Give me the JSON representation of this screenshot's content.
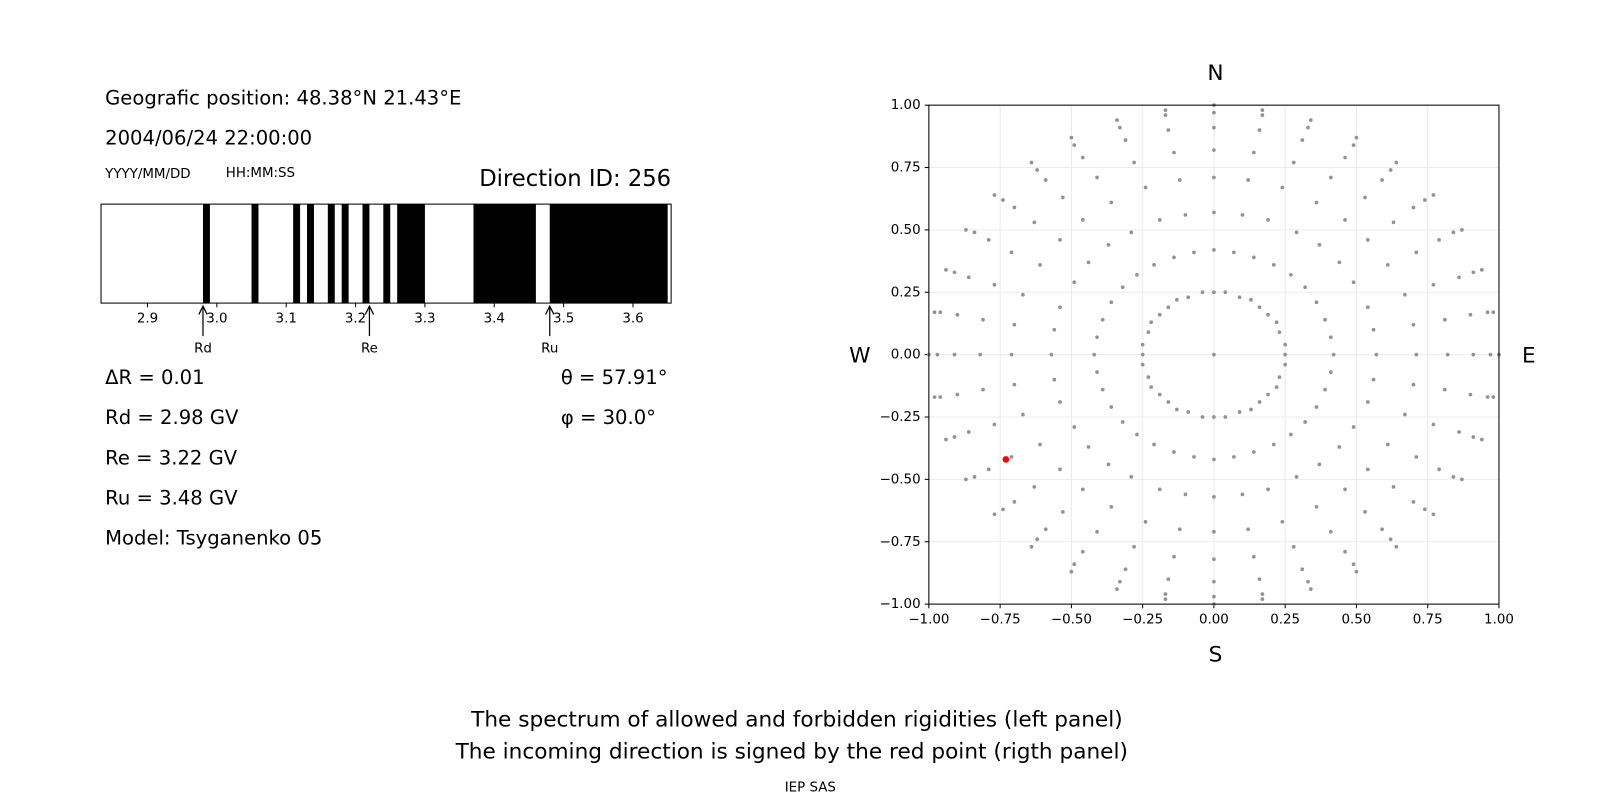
{
  "header": {
    "position": "Geografic position: 48.38°N 21.43°E",
    "datetime": "2004/06/24 22:00:00",
    "date_format": "YYYY/MM/DD",
    "time_format": "HH:MM:SS",
    "direction_id": "Direction ID: 256"
  },
  "results": [
    "ΔR = 0.01",
    "Rd = 2.98 GV",
    "Re = 3.22 GV",
    "Ru = 3.48 GV",
    "Model: Tsyganenko 05"
  ],
  "angles": [
    "θ = 57.91°",
    "φ = 30.0°"
  ],
  "footer": {
    "lines": [
      "The spectrum of allowed and forbidden rigidities (left panel)",
      "The incoming direction is signed by the red point (rigth panel)"
    ],
    "credit": "IEP SAS"
  },
  "chart_data": [
    {
      "type": "spectrum",
      "xlim": [
        2.833,
        3.655
      ],
      "xticks": [
        2.9,
        {
          "value": 3,
          "label": "3.0"
        },
        3.1,
        3.2,
        3.3,
        3.4,
        3.5,
        3.6
      ],
      "band_color": "#000000",
      "bands": [
        [
          2.98,
          2.99
        ],
        [
          3.05,
          3.06
        ],
        [
          3.11,
          3.12
        ],
        [
          3.13,
          3.14
        ],
        [
          3.16,
          3.17
        ],
        [
          3.18,
          3.19
        ],
        [
          3.21,
          3.22
        ],
        [
          3.24,
          3.25
        ],
        [
          3.26,
          3.3
        ],
        [
          3.37,
          3.46
        ],
        [
          3.48,
          3.65
        ]
      ],
      "markers": [
        {
          "value": 2.98,
          "label": "Rd"
        },
        {
          "value": 3.22,
          "label": "Re"
        },
        {
          "value": 3.48,
          "label": "Ru"
        }
      ]
    },
    {
      "type": "scatter",
      "grid": true,
      "compass": {
        "north": "N",
        "south": "S",
        "west": "W",
        "east": "E"
      },
      "xlim": [
        -1,
        1
      ],
      "ylim": [
        -1,
        1
      ],
      "xticks": [
        {
          "value": -1,
          "label": "−1.00"
        },
        {
          "value": -0.75,
          "label": "−0.75"
        },
        {
          "value": -0.5,
          "label": "−0.50"
        },
        {
          "value": -0.25,
          "label": "−0.25"
        },
        {
          "value": 0,
          "label": "0.00"
        },
        {
          "value": 0.25,
          "label": "0.25"
        },
        {
          "value": 0.5,
          "label": "0.50"
        },
        {
          "value": 0.75,
          "label": "0.75"
        },
        {
          "value": 1,
          "label": "1.00"
        }
      ],
      "yticks": [
        {
          "value": -1,
          "label": "−1.00"
        },
        {
          "value": -0.75,
          "label": "−0.75"
        },
        {
          "value": -0.5,
          "label": "−0.50"
        },
        {
          "value": -0.25,
          "label": "−0.25"
        },
        {
          "value": 0,
          "label": "0.00"
        },
        {
          "value": 0.25,
          "label": "0.25"
        },
        {
          "value": 0.5,
          "label": "0.50"
        },
        {
          "value": 0.75,
          "label": "0.75"
        },
        {
          "value": 1,
          "label": "1.00"
        }
      ],
      "point_color": "#929292",
      "series": [
        {
          "x": [
            0
          ],
          "values": [
            0
          ]
        },
        {
          "x": [
            0.25,
            0.25,
            0.23,
            0.22,
            0.19,
            0.16,
            0.13,
            0.09,
            0.04,
            0,
            -0.04,
            -0.09,
            -0.13,
            -0.16,
            -0.19,
            -0.22,
            -0.23,
            -0.25,
            -0.25,
            -0.25,
            -0.23,
            -0.22,
            -0.19,
            -0.16,
            -0.13,
            -0.09,
            -0.04,
            0,
            0.04,
            0.09,
            0.13,
            0.16,
            0.19,
            0.22,
            0.23,
            0.25
          ],
          "values": [
            0,
            0.04,
            0.09,
            0.13,
            0.16,
            0.19,
            0.22,
            0.23,
            0.25,
            0.25,
            0.25,
            0.23,
            0.22,
            0.19,
            0.16,
            0.13,
            0.09,
            0.04,
            0,
            -0.04,
            -0.09,
            -0.13,
            -0.16,
            -0.19,
            -0.22,
            -0.23,
            -0.25,
            -0.25,
            -0.25,
            -0.23,
            -0.22,
            -0.19,
            -0.16,
            -0.13,
            -0.09,
            -0.04
          ]
        },
        {
          "x": [
            0.42,
            0.41,
            0.39,
            0.36,
            0.32,
            0.27,
            0.21,
            0.14,
            0.07,
            0,
            -0.07,
            -0.14,
            -0.21,
            -0.27,
            -0.32,
            -0.36,
            -0.39,
            -0.41,
            -0.42,
            -0.41,
            -0.39,
            -0.36,
            -0.32,
            -0.27,
            -0.21,
            -0.14,
            -0.07,
            0,
            0.07,
            0.14,
            0.21,
            0.27,
            0.32,
            0.36,
            0.39,
            0.41
          ],
          "values": [
            0,
            0.07,
            0.14,
            0.21,
            0.27,
            0.32,
            0.36,
            0.39,
            0.41,
            0.42,
            0.41,
            0.39,
            0.36,
            0.32,
            0.27,
            0.21,
            0.14,
            0.07,
            0,
            -0.07,
            -0.14,
            -0.21,
            -0.27,
            -0.32,
            -0.36,
            -0.39,
            -0.41,
            -0.42,
            -0.41,
            -0.39,
            -0.36,
            -0.32,
            -0.27,
            -0.21,
            -0.14,
            -0.07
          ]
        },
        {
          "x": [
            0.57,
            0.56,
            0.54,
            0.49,
            0.44,
            0.37,
            0.29,
            0.19,
            0.1,
            0,
            -0.1,
            -0.19,
            -0.29,
            -0.37,
            -0.44,
            -0.49,
            -0.54,
            -0.56,
            -0.57,
            -0.56,
            -0.54,
            -0.49,
            -0.44,
            -0.37,
            -0.29,
            -0.19,
            -0.1,
            0,
            0.1,
            0.19,
            0.29,
            0.37,
            0.44,
            0.49,
            0.54,
            0.56
          ],
          "values": [
            0,
            0.1,
            0.19,
            0.29,
            0.37,
            0.44,
            0.49,
            0.54,
            0.56,
            0.57,
            0.56,
            0.54,
            0.49,
            0.44,
            0.37,
            0.29,
            0.19,
            0.1,
            0,
            -0.1,
            -0.19,
            -0.29,
            -0.37,
            -0.44,
            -0.49,
            -0.54,
            -0.56,
            -0.57,
            -0.56,
            -0.54,
            -0.49,
            -0.44,
            -0.37,
            -0.29,
            -0.19,
            -0.1
          ]
        },
        {
          "x": [
            0.71,
            0.7,
            0.67,
            0.61,
            0.54,
            0.46,
            0.36,
            0.24,
            0.12,
            0,
            -0.12,
            -0.24,
            -0.36,
            -0.46,
            -0.54,
            -0.61,
            -0.67,
            -0.7,
            -0.71,
            -0.7,
            -0.67,
            -0.61,
            -0.54,
            -0.46,
            -0.36,
            -0.24,
            -0.12,
            0,
            0.12,
            0.24,
            0.36,
            0.46,
            0.54,
            0.61,
            0.67,
            0.7
          ],
          "values": [
            0,
            0.12,
            0.24,
            0.36,
            0.46,
            0.54,
            0.61,
            0.67,
            0.7,
            0.71,
            0.7,
            0.67,
            0.61,
            0.54,
            0.46,
            0.36,
            0.24,
            0.12,
            0,
            -0.12,
            -0.24,
            -0.36,
            -0.46,
            -0.54,
            -0.61,
            -0.67,
            -0.7,
            -0.71,
            -0.7,
            -0.67,
            -0.61,
            -0.54,
            -0.46,
            -0.36,
            -0.24,
            -0.12
          ]
        },
        {
          "x": [
            0.82,
            0.81,
            0.77,
            0.71,
            0.63,
            0.53,
            0.41,
            0.28,
            0.14,
            0,
            -0.14,
            -0.28,
            -0.41,
            -0.53,
            -0.63,
            -0.71,
            -0.77,
            -0.81,
            -0.82,
            -0.81,
            -0.77,
            -0.71,
            -0.63,
            -0.53,
            -0.41,
            -0.28,
            -0.14,
            0,
            0.14,
            0.28,
            0.41,
            0.53,
            0.63,
            0.71,
            0.77,
            0.81
          ],
          "values": [
            0,
            0.14,
            0.28,
            0.41,
            0.53,
            0.63,
            0.71,
            0.77,
            0.81,
            0.82,
            0.81,
            0.77,
            0.71,
            0.63,
            0.53,
            0.41,
            0.28,
            0.14,
            0,
            -0.14,
            -0.28,
            -0.41,
            -0.53,
            -0.63,
            -0.71,
            -0.77,
            -0.81,
            -0.82,
            -0.81,
            -0.77,
            -0.71,
            -0.63,
            -0.53,
            -0.41,
            -0.28,
            -0.14
          ]
        },
        {
          "x": [
            0.91,
            0.9,
            0.86,
            0.79,
            0.7,
            0.59,
            0.46,
            0.31,
            0.16,
            0,
            -0.16,
            -0.31,
            -0.46,
            -0.59,
            -0.7,
            -0.79,
            -0.86,
            -0.9,
            -0.91,
            -0.9,
            -0.86,
            -0.79,
            -0.7,
            -0.59,
            -0.46,
            -0.31,
            -0.16,
            0,
            0.16,
            0.31,
            0.46,
            0.59,
            0.7,
            0.79,
            0.86,
            0.9
          ],
          "values": [
            0,
            0.16,
            0.31,
            0.46,
            0.59,
            0.7,
            0.79,
            0.86,
            0.9,
            0.91,
            0.9,
            0.86,
            0.79,
            0.7,
            0.59,
            0.46,
            0.31,
            0.16,
            0,
            -0.16,
            -0.31,
            -0.46,
            -0.59,
            -0.7,
            -0.79,
            -0.86,
            -0.9,
            -0.91,
            -0.9,
            -0.86,
            -0.79,
            -0.7,
            -0.59,
            -0.46,
            -0.31,
            -0.16
          ]
        },
        {
          "x": [
            0.97,
            0.96,
            0.91,
            0.84,
            0.74,
            0.62,
            0.49,
            0.33,
            0.17,
            0,
            -0.17,
            -0.33,
            -0.49,
            -0.62,
            -0.74,
            -0.84,
            -0.91,
            -0.96,
            -0.97,
            -0.96,
            -0.91,
            -0.84,
            -0.74,
            -0.62,
            -0.49,
            -0.33,
            -0.17,
            0,
            0.17,
            0.33,
            0.49,
            0.62,
            0.74,
            0.84,
            0.91,
            0.96
          ],
          "values": [
            0,
            0.17,
            0.33,
            0.49,
            0.62,
            0.74,
            0.84,
            0.91,
            0.96,
            0.97,
            0.96,
            0.91,
            0.84,
            0.74,
            0.62,
            0.49,
            0.33,
            0.17,
            0,
            -0.17,
            -0.33,
            -0.49,
            -0.62,
            -0.74,
            -0.84,
            -0.91,
            -0.96,
            -0.97,
            -0.96,
            -0.91,
            -0.84,
            -0.74,
            -0.62,
            -0.49,
            -0.33,
            -0.17
          ]
        },
        {
          "x": [
            1,
            0.98,
            0.94,
            0.87,
            0.77,
            0.64,
            0.5,
            0.34,
            0.17,
            0,
            -0.17,
            -0.34,
            -0.5,
            -0.64,
            -0.77,
            -0.87,
            -0.94,
            -0.98,
            -1,
            -0.98,
            -0.94,
            -0.87,
            -0.77,
            -0.64,
            -0.5,
            -0.34,
            -0.17,
            0,
            0.17,
            0.34,
            0.5,
            0.64,
            0.77,
            0.87,
            0.94,
            0.98
          ],
          "values": [
            0,
            0.17,
            0.34,
            0.5,
            0.64,
            0.77,
            0.87,
            0.94,
            0.98,
            1,
            0.98,
            0.94,
            0.87,
            0.77,
            0.64,
            0.5,
            0.34,
            0.17,
            0,
            -0.17,
            -0.34,
            -0.5,
            -0.64,
            -0.77,
            -0.87,
            -0.94,
            -0.98,
            -1,
            -0.98,
            -0.94,
            -0.87,
            -0.77,
            -0.64,
            -0.5,
            -0.34,
            -0.17
          ]
        }
      ],
      "highlight": {
        "x": -0.73,
        "value": -0.42,
        "color": "#ff0000"
      }
    }
  ]
}
